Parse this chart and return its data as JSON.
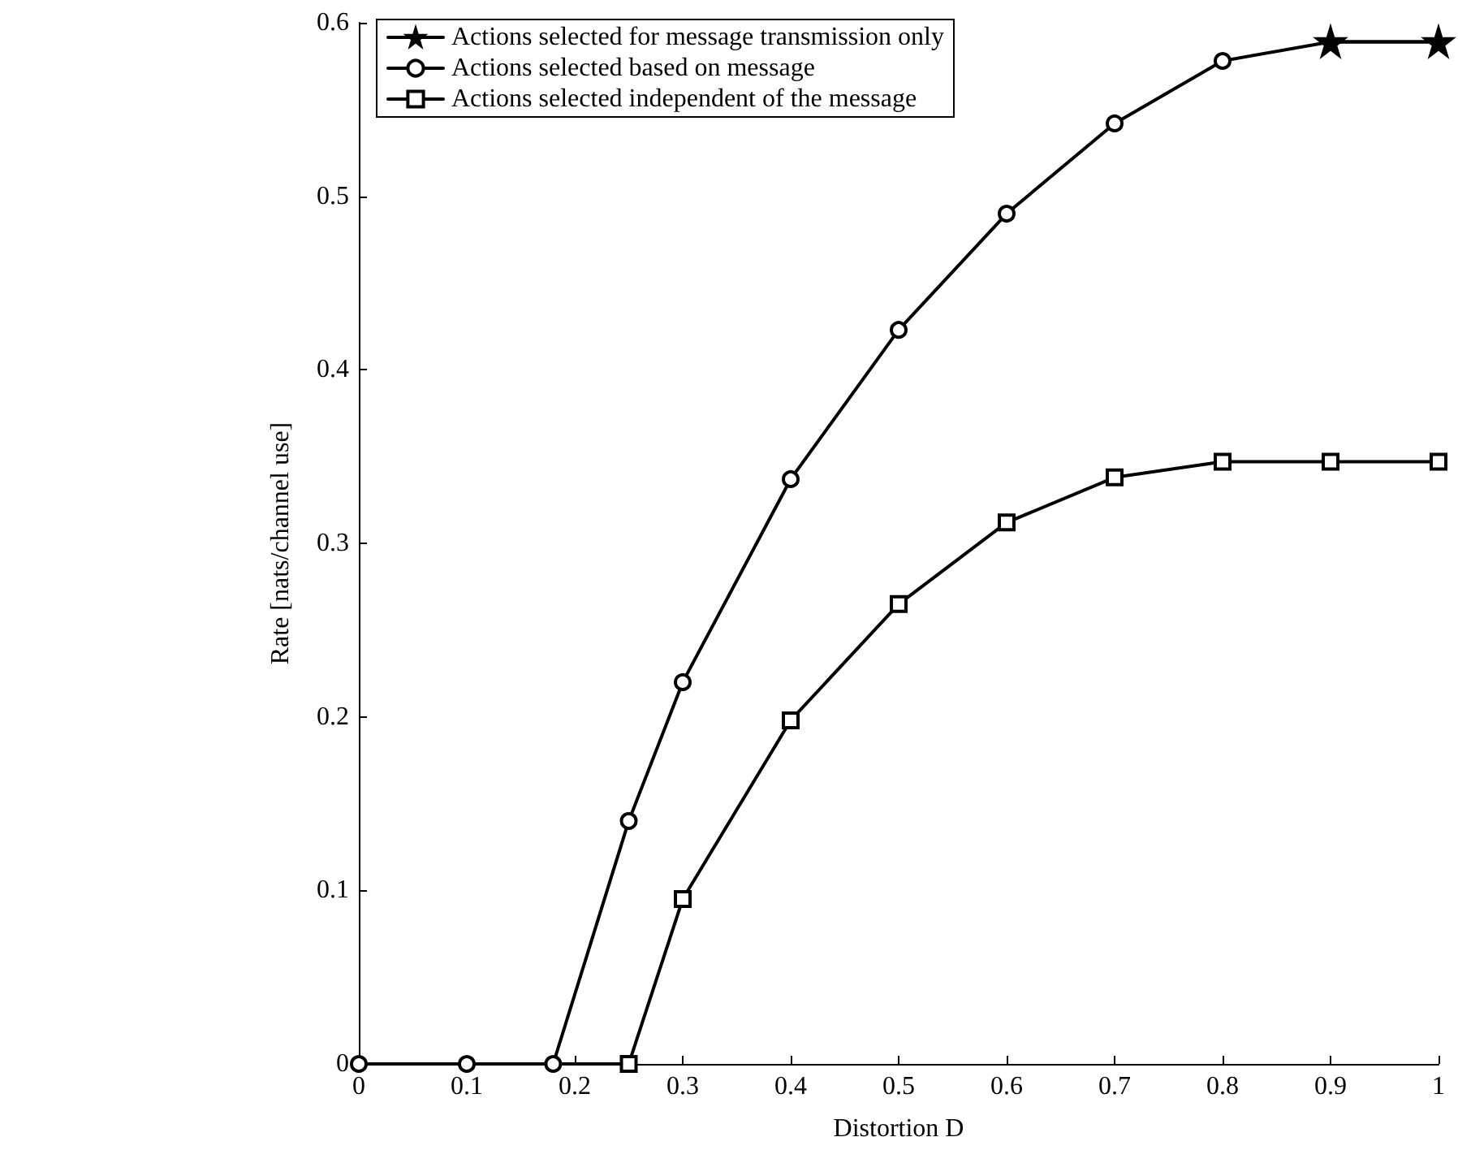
{
  "chart_data": {
    "type": "line",
    "xlabel": "Distortion D",
    "ylabel": "Rate [nats/channel use]",
    "xlim": [
      0,
      1
    ],
    "xticks": [
      0,
      0.1,
      0.2,
      0.3,
      0.4,
      0.5,
      0.6,
      0.7,
      0.8,
      0.9,
      1
    ],
    "ylim": [
      0,
      0.6
    ],
    "yticks": [
      0,
      0.1,
      0.2,
      0.3,
      0.4,
      0.5,
      0.6
    ],
    "grid": false,
    "legend": "top left",
    "line_style": "solid",
    "series": [
      {
        "name": "Actions selected for message transmission only",
        "color": "#000000",
        "marker": "star",
        "x": [
          0.9,
          1
        ],
        "values": [
          0.589,
          0.589
        ]
      },
      {
        "name": "Actions selected based on message",
        "color": "#000000",
        "marker": "circle",
        "x": [
          0,
          0.1,
          0.18,
          0.25,
          0.3,
          0.4,
          0.5,
          0.6,
          0.7,
          0.8,
          0.9,
          1
        ],
        "values": [
          0,
          0,
          0,
          0.14,
          0.22,
          0.337,
          0.423,
          0.49,
          0.542,
          0.578,
          0.589,
          0.589
        ]
      },
      {
        "name": "Actions selected independent of the message",
        "color": "#000000",
        "marker": "square",
        "x": [
          0,
          0.1,
          0.18,
          0.25,
          0.3,
          0.4,
          0.5,
          0.6,
          0.7,
          0.8,
          0.9,
          1
        ],
        "values": [
          0,
          0,
          0,
          0,
          0.095,
          0.198,
          0.265,
          0.312,
          0.338,
          0.347,
          0.347,
          0.347
        ]
      }
    ]
  }
}
